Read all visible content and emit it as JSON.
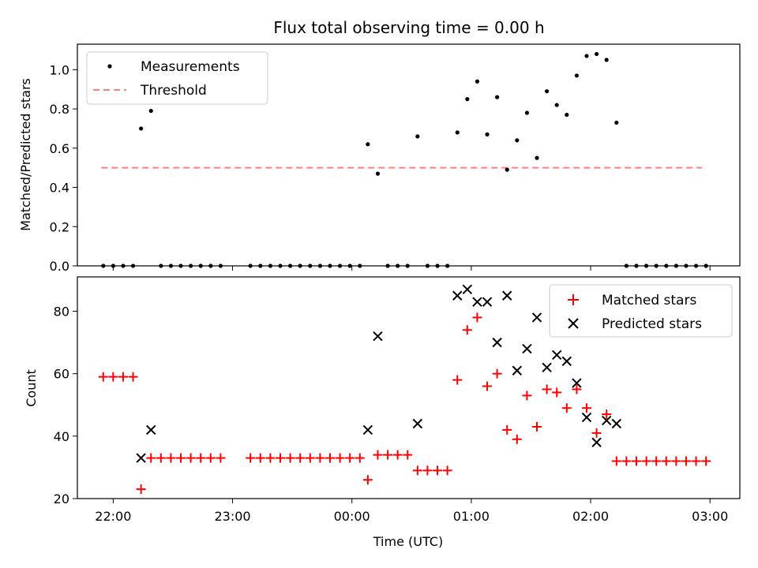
{
  "chart_data": [
    {
      "type": "scatter",
      "title": "Flux total observing time = 0.00 h",
      "xlabel": "",
      "ylabel": "Matched/Predicted stars",
      "xlim": [
        "21:42",
        "03:15"
      ],
      "ylim": [
        0,
        1.13
      ],
      "grid": false,
      "legend_position": "top-left",
      "yticks": [
        {
          "v": 0,
          "label": "0.0"
        },
        {
          "v": 0.2,
          "label": "0.2"
        },
        {
          "v": 0.4,
          "label": "0.4"
        },
        {
          "v": 0.6,
          "label": "0.6"
        },
        {
          "v": 0.8,
          "label": "0.8"
        },
        {
          "v": 1.0,
          "label": "1.0"
        }
      ],
      "series": [
        {
          "name": "Measurements",
          "color": "#000000",
          "marker": "dot",
          "points": [
            [
              "21:55",
              0
            ],
            [
              "22:00",
              0
            ],
            [
              "22:05",
              0
            ],
            [
              "22:10",
              0
            ],
            [
              "22:14",
              0.7
            ],
            [
              "22:19",
              0.79
            ],
            [
              "22:24",
              0
            ],
            [
              "22:29",
              0
            ],
            [
              "22:34",
              0
            ],
            [
              "22:39",
              0
            ],
            [
              "22:44",
              0
            ],
            [
              "22:49",
              0
            ],
            [
              "22:54",
              0
            ],
            [
              "23:09",
              0
            ],
            [
              "23:14",
              0
            ],
            [
              "23:19",
              0
            ],
            [
              "23:24",
              0
            ],
            [
              "23:29",
              0
            ],
            [
              "23:34",
              0
            ],
            [
              "23:39",
              0
            ],
            [
              "23:44",
              0
            ],
            [
              "23:49",
              0
            ],
            [
              "23:54",
              0
            ],
            [
              "23:59",
              0
            ],
            [
              "00:04",
              0
            ],
            [
              "00:08",
              0.62
            ],
            [
              "00:13",
              0.47
            ],
            [
              "00:18",
              0
            ],
            [
              "00:23",
              0
            ],
            [
              "00:28",
              0
            ],
            [
              "00:33",
              0.66
            ],
            [
              "00:38",
              0
            ],
            [
              "00:43",
              0
            ],
            [
              "00:48",
              0
            ],
            [
              "00:53",
              0.68
            ],
            [
              "00:58",
              0.85
            ],
            [
              "01:03",
              0.94
            ],
            [
              "01:08",
              0.67
            ],
            [
              "01:13",
              0.86
            ],
            [
              "01:18",
              0.49
            ],
            [
              "01:23",
              0.64
            ],
            [
              "01:28",
              0.78
            ],
            [
              "01:33",
              0.55
            ],
            [
              "01:38",
              0.89
            ],
            [
              "01:43",
              0.82
            ],
            [
              "01:48",
              0.77
            ],
            [
              "01:53",
              0.97
            ],
            [
              "01:58",
              1.07
            ],
            [
              "02:03",
              1.08
            ],
            [
              "02:08",
              1.05
            ],
            [
              "02:13",
              0.73
            ],
            [
              "02:18",
              0
            ],
            [
              "02:23",
              0
            ],
            [
              "02:28",
              0
            ],
            [
              "02:33",
              0
            ],
            [
              "02:38",
              0
            ],
            [
              "02:43",
              0
            ],
            [
              "02:48",
              0
            ],
            [
              "02:53",
              0
            ],
            [
              "02:58",
              0
            ]
          ]
        },
        {
          "name": "Threshold",
          "color": "#ff7f7f",
          "style": "dashed",
          "points": [
            [
              "21:54",
              0.5
            ],
            [
              "02:56",
              0.5
            ]
          ]
        }
      ]
    },
    {
      "type": "scatter",
      "title": "",
      "xlabel": "Time (UTC)",
      "ylabel": "Count",
      "xlim": [
        "21:42",
        "03:15"
      ],
      "ylim": [
        20,
        91
      ],
      "grid": false,
      "legend_position": "top-right",
      "xticks": [
        "22:00",
        "23:00",
        "00:00",
        "01:00",
        "02:00",
        "03:00"
      ],
      "yticks": [
        {
          "v": 20,
          "label": "20"
        },
        {
          "v": 40,
          "label": "40"
        },
        {
          "v": 60,
          "label": "60"
        },
        {
          "v": 80,
          "label": "80"
        }
      ],
      "series": [
        {
          "name": "Matched stars",
          "color": "#ff0000",
          "marker": "plus",
          "points": [
            [
              "21:55",
              59
            ],
            [
              "22:00",
              59
            ],
            [
              "22:05",
              59
            ],
            [
              "22:10",
              59
            ],
            [
              "22:14",
              23
            ],
            [
              "22:19",
              33
            ],
            [
              "22:24",
              33
            ],
            [
              "22:29",
              33
            ],
            [
              "22:34",
              33
            ],
            [
              "22:39",
              33
            ],
            [
              "22:44",
              33
            ],
            [
              "22:49",
              33
            ],
            [
              "22:54",
              33
            ],
            [
              "23:09",
              33
            ],
            [
              "23:14",
              33
            ],
            [
              "23:19",
              33
            ],
            [
              "23:24",
              33
            ],
            [
              "23:29",
              33
            ],
            [
              "23:34",
              33
            ],
            [
              "23:39",
              33
            ],
            [
              "23:44",
              33
            ],
            [
              "23:49",
              33
            ],
            [
              "23:54",
              33
            ],
            [
              "23:59",
              33
            ],
            [
              "00:04",
              33
            ],
            [
              "00:08",
              26
            ],
            [
              "00:13",
              34
            ],
            [
              "00:18",
              34
            ],
            [
              "00:23",
              34
            ],
            [
              "00:28",
              34
            ],
            [
              "00:33",
              29
            ],
            [
              "00:38",
              29
            ],
            [
              "00:43",
              29
            ],
            [
              "00:48",
              29
            ],
            [
              "00:53",
              58
            ],
            [
              "00:58",
              74
            ],
            [
              "01:03",
              78
            ],
            [
              "01:08",
              56
            ],
            [
              "01:13",
              60
            ],
            [
              "01:18",
              42
            ],
            [
              "01:23",
              39
            ],
            [
              "01:28",
              53
            ],
            [
              "01:33",
              43
            ],
            [
              "01:38",
              55
            ],
            [
              "01:43",
              54
            ],
            [
              "01:48",
              49
            ],
            [
              "01:53",
              55
            ],
            [
              "01:58",
              49
            ],
            [
              "02:03",
              41
            ],
            [
              "02:08",
              47
            ],
            [
              "02:13",
              32
            ],
            [
              "02:18",
              32
            ],
            [
              "02:23",
              32
            ],
            [
              "02:28",
              32
            ],
            [
              "02:33",
              32
            ],
            [
              "02:38",
              32
            ],
            [
              "02:43",
              32
            ],
            [
              "02:48",
              32
            ],
            [
              "02:53",
              32
            ],
            [
              "02:58",
              32
            ]
          ]
        },
        {
          "name": "Predicted stars",
          "color": "#000000",
          "marker": "x",
          "points": [
            [
              "22:14",
              33
            ],
            [
              "22:19",
              42
            ],
            [
              "00:08",
              42
            ],
            [
              "00:13",
              72
            ],
            [
              "00:33",
              44
            ],
            [
              "00:53",
              85
            ],
            [
              "00:58",
              87
            ],
            [
              "01:03",
              83
            ],
            [
              "01:08",
              83
            ],
            [
              "01:13",
              70
            ],
            [
              "01:18",
              85
            ],
            [
              "01:23",
              61
            ],
            [
              "01:28",
              68
            ],
            [
              "01:33",
              78
            ],
            [
              "01:38",
              62
            ],
            [
              "01:43",
              66
            ],
            [
              "01:48",
              64
            ],
            [
              "01:53",
              57
            ],
            [
              "01:58",
              46
            ],
            [
              "02:03",
              38
            ],
            [
              "02:08",
              45
            ],
            [
              "02:13",
              44
            ]
          ]
        }
      ]
    }
  ]
}
